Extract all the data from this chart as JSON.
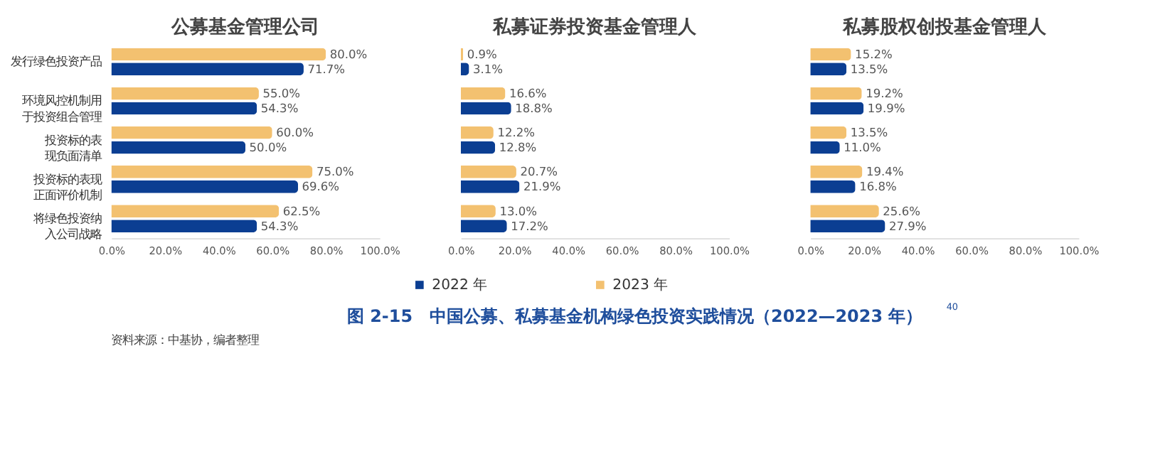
{
  "chart_data": [
    {
      "type": "bar",
      "orientation": "horizontal",
      "title": "公募基金管理公司",
      "categories": [
        "发行绿色投资产品",
        "环境风控机制用于投资组合管理",
        "投资标的表现负面清单",
        "投资标的表现正面评价机制",
        "将绿色投资纳入公司战略"
      ],
      "series": [
        {
          "name": "2022 年",
          "color": "#0b3e92",
          "values": [
            71.7,
            54.3,
            50.0,
            69.6,
            54.3
          ],
          "value_labels": [
            "71.7%",
            "54.3%",
            "50.0%",
            "69.6%",
            "54.3%"
          ]
        },
        {
          "name": "2023 年",
          "color": "#f3c170",
          "values": [
            80.0,
            55.0,
            60.0,
            75.0,
            62.5
          ],
          "value_labels": [
            "80.0%",
            "55.0%",
            "60.0%",
            "75.0%",
            "62.5%"
          ]
        }
      ],
      "xlim": [
        0,
        100
      ],
      "xticks": [
        {
          "value": 0,
          "label": "0.0%"
        },
        {
          "value": 20,
          "label": "20.0%"
        },
        {
          "value": 40,
          "label": "40.0%"
        },
        {
          "value": 60,
          "label": "60.0%"
        },
        {
          "value": 80,
          "label": "80.0%"
        },
        {
          "value": 100,
          "label": "100.0%"
        }
      ],
      "legend": "bottom",
      "grid": false,
      "annotations": [
        "图 2-15　中国公募、私募基金机构绿色投资实践情况（2022—2023 年）$^{40}$",
        "资料来源：中基协，编者整理"
      ]
    },
    {
      "type": "bar",
      "orientation": "horizontal",
      "title": "私募证券投资基金管理人",
      "categories": [
        "发行绿色投资产品",
        "环境风控机制用于投资组合管理",
        "投资标的表现负面清单",
        "投资标的表现正面评价机制",
        "将绿色投资纳入公司战略"
      ],
      "series": [
        {
          "name": "2022 年",
          "color": "#0b3e92",
          "values": [
            3.1,
            18.8,
            12.8,
            21.9,
            17.2
          ],
          "value_labels": [
            "3.1%",
            "18.8%",
            "12.8%",
            "21.9%",
            "17.2%"
          ]
        },
        {
          "name": "2023 年",
          "color": "#f3c170",
          "values": [
            0.9,
            16.6,
            12.2,
            20.7,
            13.0
          ],
          "value_labels": [
            "0.9%",
            "16.6%",
            "12.2%",
            "20.7%",
            "13.0%"
          ]
        }
      ],
      "xlim": [
        0,
        100
      ],
      "xticks": [
        {
          "value": 0,
          "label": "0.0%"
        },
        {
          "value": 20,
          "label": "20.0%"
        },
        {
          "value": 40,
          "label": "40.0%"
        },
        {
          "value": 60,
          "label": "60.0%"
        },
        {
          "value": 80,
          "label": "80.0%"
        },
        {
          "value": 100,
          "label": "100.0%"
        }
      ],
      "tick_labels": "x",
      "legend": "bottom",
      "grid": false
    },
    {
      "type": "bar",
      "orientation": "horizontal",
      "title": "私募股权创投基金管理人",
      "categories": [
        "发行绿色投资产品",
        "环境风控机制用于投资组合管理",
        "投资标的表现负面清单",
        "投资标的表现正面评价机制",
        "将绿色投资纳入公司战略"
      ],
      "series": [
        {
          "name": "2022 年",
          "color": "#0b3e92",
          "values": [
            13.5,
            19.9,
            11.0,
            16.8,
            27.9
          ],
          "value_labels": [
            "13.5%",
            "19.9%",
            "11.0%",
            "16.8%",
            "27.9%"
          ]
        },
        {
          "name": "2023 年",
          "color": "#f3c170",
          "values": [
            15.2,
            19.2,
            13.5,
            19.4,
            25.6
          ],
          "value_labels": [
            "15.2%",
            "19.2%",
            "13.5%",
            "19.4%",
            "25.6%"
          ]
        }
      ],
      "xlim": [
        0,
        100
      ],
      "xticks": [
        {
          "value": 0,
          "label": "0.0%"
        },
        {
          "value": 20,
          "label": "20.0%"
        },
        {
          "value": 40,
          "label": "40.0%"
        },
        {
          "value": 60,
          "label": "60.0%"
        },
        {
          "value": 80,
          "label": "80.0%"
        },
        {
          "value": 100,
          "label": "100.0%"
        }
      ],
      "tick_labels": "x",
      "legend": "bottom",
      "grid": false
    }
  ]
}
